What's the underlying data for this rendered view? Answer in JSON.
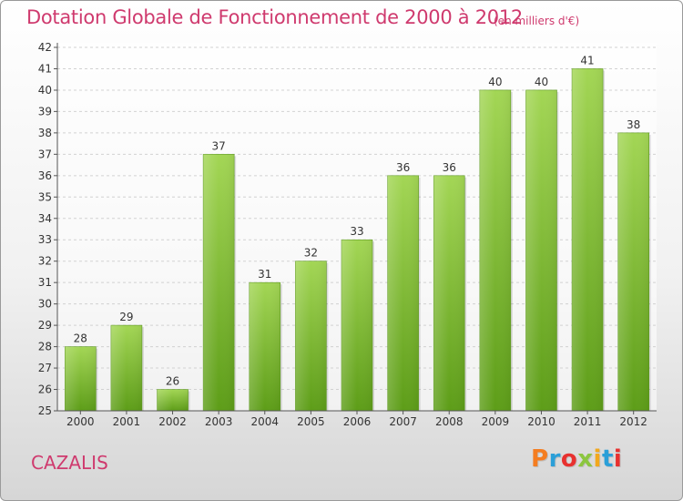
{
  "header": {
    "title": "Dotation Globale de Fonctionnement de 2000 à 2012",
    "units": "(en milliers d'€)"
  },
  "footer": {
    "commune": "CAZALIS",
    "brand": "Proxiti",
    "brand_colors": [
      "#f47d20",
      "#2b9fd8",
      "#e8312f",
      "#8cc63f",
      "#f2a81d",
      "#2b9fd8",
      "#e8312f"
    ]
  },
  "chart_data": {
    "type": "bar",
    "title": "Dotation Globale de Fonctionnement de 2000 à 2012",
    "subtitle": "(en milliers d'€)",
    "xlabel": "",
    "ylabel": "",
    "categories": [
      "2000",
      "2001",
      "2002",
      "2003",
      "2004",
      "2005",
      "2006",
      "2007",
      "2008",
      "2009",
      "2010",
      "2011",
      "2012"
    ],
    "values": [
      28,
      29,
      26,
      37,
      31,
      32,
      33,
      36,
      36,
      40,
      40,
      41,
      38
    ],
    "ylim": [
      25,
      42
    ],
    "yticks": [
      25,
      26,
      27,
      28,
      29,
      30,
      31,
      32,
      33,
      34,
      35,
      36,
      37,
      38,
      39,
      40,
      41,
      42
    ],
    "grid": true,
    "bar_color": "#7dbb2c"
  }
}
